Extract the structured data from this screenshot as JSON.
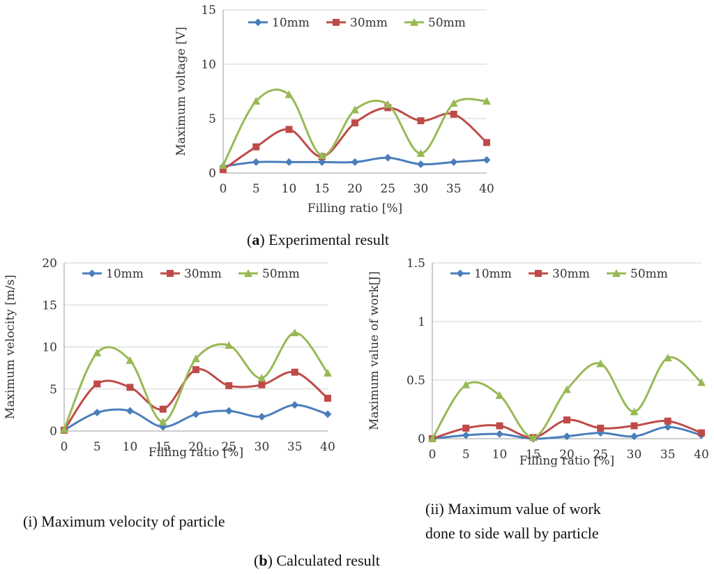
{
  "charts": [
    {
      "id": "a",
      "chart_data": {
        "type": "line",
        "title": "",
        "xlabel": "Filling ratio [%]",
        "ylabel": "Maximum voltage [V]",
        "categories": [
          "0",
          "5",
          "10",
          "15",
          "20",
          "25",
          "30",
          "35",
          "40"
        ],
        "ylim": [
          0,
          15
        ],
        "yticks": [
          0,
          5,
          10,
          15
        ],
        "ytick_labels": [
          "0",
          "5",
          "10",
          "15"
        ],
        "legend_position": "top",
        "grid": true,
        "series": [
          {
            "name": "10mm",
            "marker": "diamond",
            "color": "#4a7ebb",
            "values": [
              0.6,
              1.0,
              1.0,
              1.0,
              1.0,
              1.4,
              0.8,
              1.0,
              1.2
            ]
          },
          {
            "name": "30mm",
            "marker": "square",
            "color": "#be4b48",
            "values": [
              0.3,
              2.4,
              4.0,
              1.5,
              4.6,
              6.0,
              4.8,
              5.4,
              2.8
            ]
          },
          {
            "name": "50mm",
            "marker": "triangle",
            "color": "#98b954",
            "values": [
              0.7,
              6.6,
              7.2,
              1.6,
              5.8,
              6.3,
              1.8,
              6.4,
              6.6
            ]
          }
        ]
      }
    },
    {
      "id": "b-i",
      "chart_data": {
        "type": "line",
        "title": "",
        "xlabel": "Filling ratio [%]",
        "ylabel": "Maximum velocity [m/s]",
        "categories": [
          "0",
          "5",
          "10",
          "15",
          "20",
          "25",
          "30",
          "35",
          "40"
        ],
        "ylim": [
          0,
          20
        ],
        "yticks": [
          0,
          5,
          10,
          15,
          20
        ],
        "ytick_labels": [
          "0",
          "5",
          "10",
          "15",
          "20"
        ],
        "legend_position": "top",
        "grid": true,
        "series": [
          {
            "name": "10mm",
            "marker": "diamond",
            "color": "#4a7ebb",
            "values": [
              0.1,
              2.2,
              2.4,
              0.5,
              2.0,
              2.4,
              1.7,
              3.1,
              2.0
            ]
          },
          {
            "name": "30mm",
            "marker": "square",
            "color": "#be4b48",
            "values": [
              0.1,
              5.6,
              5.2,
              2.6,
              7.3,
              5.4,
              5.5,
              7.0,
              3.9
            ]
          },
          {
            "name": "50mm",
            "marker": "triangle",
            "color": "#98b954",
            "values": [
              0.2,
              9.3,
              8.4,
              1.1,
              8.6,
              10.2,
              6.3,
              11.7,
              6.9
            ]
          }
        ]
      }
    },
    {
      "id": "b-ii",
      "chart_data": {
        "type": "line",
        "title": "",
        "xlabel": "Filling ratio [%]",
        "ylabel": "Maximum value of work[J]",
        "categories": [
          "0",
          "5",
          "10",
          "15",
          "20",
          "25",
          "30",
          "35",
          "40"
        ],
        "ylim": [
          0,
          1.5
        ],
        "yticks": [
          0,
          0.5,
          1,
          1.5
        ],
        "ytick_labels": [
          "0",
          "0.5",
          "1",
          "1.5"
        ],
        "legend_position": "top",
        "grid": true,
        "series": [
          {
            "name": "10mm",
            "marker": "diamond",
            "color": "#4a7ebb",
            "values": [
              0.0,
              0.03,
              0.04,
              0.0,
              0.02,
              0.05,
              0.02,
              0.1,
              0.03
            ]
          },
          {
            "name": "30mm",
            "marker": "square",
            "color": "#be4b48",
            "values": [
              0.0,
              0.09,
              0.11,
              0.01,
              0.16,
              0.09,
              0.11,
              0.15,
              0.05
            ]
          },
          {
            "name": "50mm",
            "marker": "triangle",
            "color": "#98b954",
            "values": [
              0.0,
              0.46,
              0.37,
              0.01,
              0.42,
              0.64,
              0.23,
              0.69,
              0.48
            ]
          }
        ]
      }
    }
  ],
  "captions": {
    "a_label": "a",
    "a_text": ") Experimental result",
    "bi_text": "(i) Maximum velocity of particle",
    "bii_line1": "(ii) Maximum value of work",
    "bii_line2": "done to side wall by particle",
    "b_label": "b",
    "b_text": ") Calculated result"
  }
}
